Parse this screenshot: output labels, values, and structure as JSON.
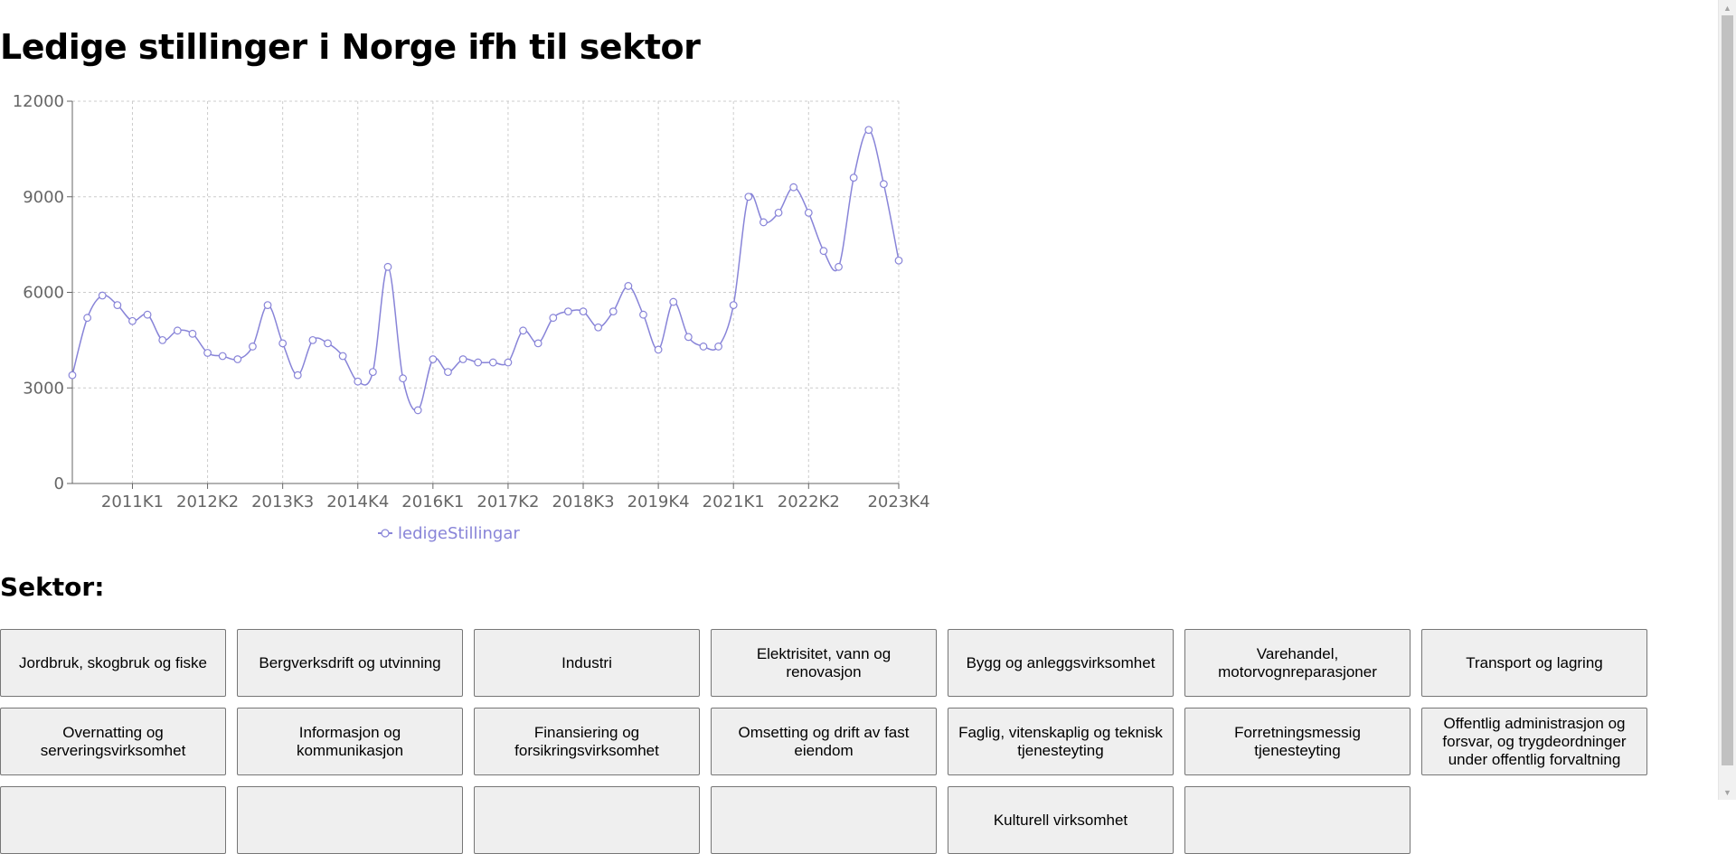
{
  "page": {
    "title": "Ledige stillinger i Norge ifh til sektor",
    "sector_heading": "Sektor:"
  },
  "colors": {
    "series": "#8884d8",
    "grid": "#cccccc",
    "axis": "#666666",
    "button_bg": "#efefef",
    "button_border": "#767676"
  },
  "chart_data": {
    "type": "line",
    "title": "",
    "xlabel": "",
    "ylabel": "",
    "ylim": [
      0,
      12000
    ],
    "y_ticks": [
      0,
      3000,
      6000,
      9000,
      12000
    ],
    "x_tick_labels": [
      "2011K1",
      "2012K2",
      "2013K3",
      "2014K4",
      "2016K1",
      "2017K2",
      "2018K3",
      "2019K4",
      "2021K1",
      "2022K2",
      "2023K4"
    ],
    "grid": true,
    "legend_position": "bottom",
    "x": [
      "2010K1",
      "2010K2",
      "2010K3",
      "2010K4",
      "2011K1",
      "2011K2",
      "2011K3",
      "2011K4",
      "2012K1",
      "2012K2",
      "2012K3",
      "2012K4",
      "2013K1",
      "2013K2",
      "2013K3",
      "2013K4",
      "2014K1",
      "2014K2",
      "2014K3",
      "2014K4",
      "2015K1",
      "2015K2",
      "2015K3",
      "2015K4",
      "2016K1",
      "2016K2",
      "2016K3",
      "2016K4",
      "2017K1",
      "2017K2",
      "2017K3",
      "2017K4",
      "2018K1",
      "2018K2",
      "2018K3",
      "2018K4",
      "2019K1",
      "2019K2",
      "2019K3",
      "2019K4",
      "2020K1",
      "2020K2",
      "2020K3",
      "2020K4",
      "2021K1",
      "2021K2",
      "2021K3",
      "2021K4",
      "2022K1",
      "2022K2",
      "2022K3",
      "2022K4",
      "2023K1",
      "2023K2",
      "2023K3",
      "2023K4"
    ],
    "series": [
      {
        "name": "ledigeStillingar",
        "values": [
          3400,
          5200,
          5900,
          5600,
          5100,
          5300,
          4500,
          4800,
          4700,
          4100,
          4000,
          3900,
          4300,
          5600,
          4400,
          3400,
          4500,
          4400,
          4000,
          3200,
          3500,
          6800,
          3300,
          2300,
          3900,
          3500,
          3900,
          3800,
          3800,
          3800,
          4800,
          4400,
          5200,
          5400,
          5400,
          4900,
          5400,
          6200,
          5300,
          4200,
          5700,
          4600,
          4300,
          4300,
          5600,
          9000,
          8200,
          8500,
          9300,
          8500,
          7300,
          6800,
          9600,
          11100,
          9400,
          7000
        ]
      }
    ]
  },
  "sectors": {
    "row1": [
      "Jordbruk, skogbruk og fiske",
      "Bergverksdrift og utvinning",
      "Industri",
      "Elektrisitet, vann og renovasjon",
      "Bygg og anleggsvirksomhet",
      "Varehandel, motorvognreparasjoner",
      "Transport og lagring"
    ],
    "row2": [
      "Overnatting og serveringsvirksomhet",
      "Informasjon og kommunikasjon",
      "Finansiering og forsikringsvirksomhet",
      "Omsetting og drift av fast eiendom",
      "Faglig, vitenskaplig og teknisk tjenesteyting",
      "Forretningsmessig tjenesteyting",
      "Offentlig administrasjon og forsvar, og trygdeordninger under offentlig forvaltning"
    ],
    "row3": [
      "",
      "",
      "",
      "",
      "Kulturell virksomhet",
      ""
    ]
  }
}
